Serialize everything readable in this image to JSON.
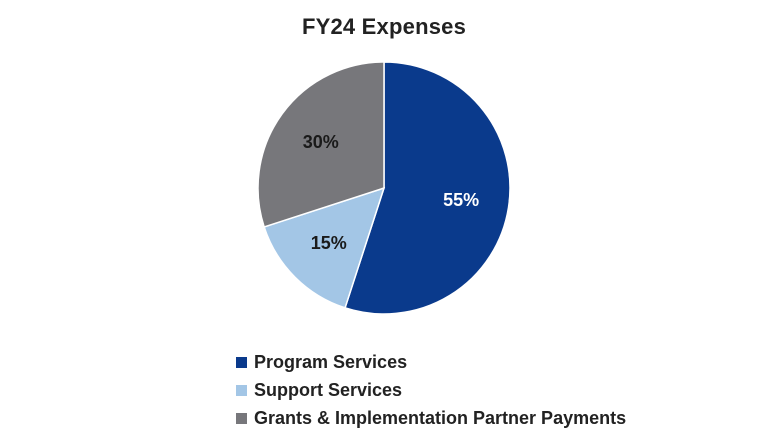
{
  "chart_data": {
    "type": "pie",
    "title": "FY24 Expenses",
    "categories": [
      "Program Services",
      "Support Services",
      "Grants & Implementation Partner Payments"
    ],
    "values": [
      55,
      15,
      30
    ],
    "value_labels": [
      "55%",
      "15%",
      "30%"
    ],
    "colors": [
      "#0a3a8c",
      "#a3c6e6",
      "#77777b"
    ],
    "label_colors": [
      "#ffffff",
      "#1a1a1a",
      "#1a1a1a"
    ],
    "legend_position": "bottom"
  }
}
